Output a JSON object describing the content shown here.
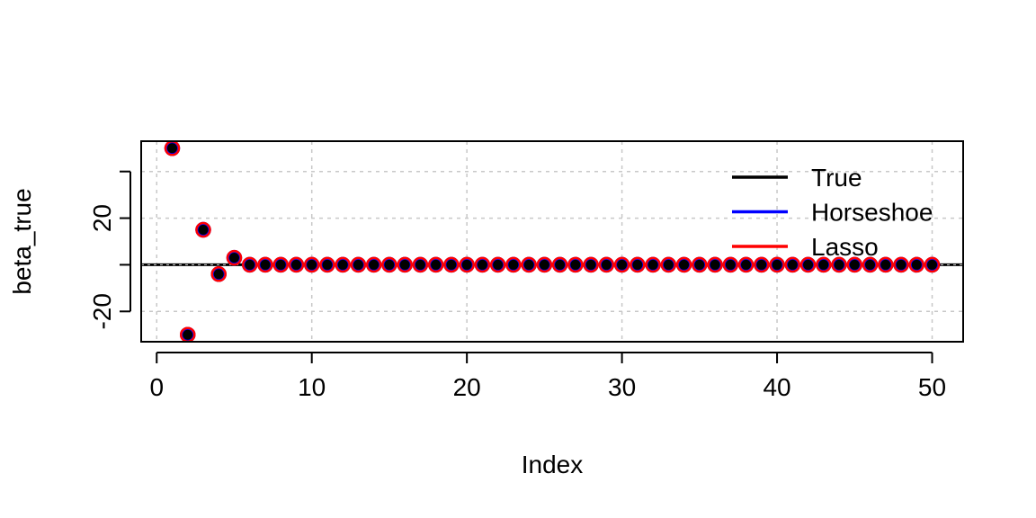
{
  "chart_data": {
    "type": "scatter",
    "xlabel": "Index",
    "ylabel": "beta_true",
    "xlim": [
      -1,
      52
    ],
    "ylim": [
      -33,
      53
    ],
    "x_ticks": [
      0,
      10,
      20,
      30,
      40,
      50
    ],
    "x_tick_labels": [
      "0",
      "10",
      "20",
      "30",
      "40",
      "50"
    ],
    "y_ticks": [
      -20,
      0,
      20,
      40
    ],
    "y_tick_labels": [
      "-20",
      "",
      "20",
      ""
    ],
    "grid": true,
    "reference_line_y": 0,
    "legend": {
      "position": "top-right",
      "entries": [
        {
          "label": "True",
          "color": "#000000"
        },
        {
          "label": "Horseshoe",
          "color": "#0000ff"
        },
        {
          "label": "Lasso",
          "color": "#ff0000"
        }
      ]
    },
    "series": [
      {
        "name": "True",
        "color": "#000000",
        "x": [
          1,
          2,
          3,
          4,
          5,
          6,
          7,
          8,
          9,
          10,
          11,
          12,
          13,
          14,
          15,
          16,
          17,
          18,
          19,
          20,
          21,
          22,
          23,
          24,
          25,
          26,
          27,
          28,
          29,
          30,
          31,
          32,
          33,
          34,
          35,
          36,
          37,
          38,
          39,
          40,
          41,
          42,
          43,
          44,
          45,
          46,
          47,
          48,
          49,
          50
        ],
        "y": [
          50,
          -30,
          15,
          -4,
          3,
          0,
          0,
          0,
          0,
          0,
          0,
          0,
          0,
          0,
          0,
          0,
          0,
          0,
          0,
          0,
          0,
          0,
          0,
          0,
          0,
          0,
          0,
          0,
          0,
          0,
          0,
          0,
          0,
          0,
          0,
          0,
          0,
          0,
          0,
          0,
          0,
          0,
          0,
          0,
          0,
          0,
          0,
          0,
          0,
          0
        ]
      },
      {
        "name": "Horseshoe",
        "color": "#0000ff",
        "x": [
          1,
          2,
          3,
          4,
          5,
          6,
          7,
          8,
          9,
          10,
          11,
          12,
          13,
          14,
          15,
          16,
          17,
          18,
          19,
          20,
          21,
          22,
          23,
          24,
          25,
          26,
          27,
          28,
          29,
          30,
          31,
          32,
          33,
          34,
          35,
          36,
          37,
          38,
          39,
          40,
          41,
          42,
          43,
          44,
          45,
          46,
          47,
          48,
          49,
          50
        ],
        "y": [
          50,
          -30,
          15,
          -4,
          3,
          0,
          0,
          0,
          0,
          0,
          0,
          0,
          0,
          0,
          0,
          0,
          0,
          0,
          0,
          0,
          0,
          0,
          0,
          0,
          0,
          0,
          0,
          0,
          0,
          0,
          0,
          0,
          0,
          0,
          0,
          0,
          0,
          0,
          0,
          0,
          0,
          0,
          0,
          0,
          0,
          0,
          0,
          0,
          0,
          0
        ]
      },
      {
        "name": "Lasso",
        "color": "#ff0000",
        "x": [
          1,
          2,
          3,
          4,
          5,
          6,
          7,
          8,
          9,
          10,
          11,
          12,
          13,
          14,
          15,
          16,
          17,
          18,
          19,
          20,
          21,
          22,
          23,
          24,
          25,
          26,
          27,
          28,
          29,
          30,
          31,
          32,
          33,
          34,
          35,
          36,
          37,
          38,
          39,
          40,
          41,
          42,
          43,
          44,
          45,
          46,
          47,
          48,
          49,
          50
        ],
        "y": [
          50,
          -30,
          15,
          -4,
          3,
          0,
          0,
          0,
          0,
          0,
          0,
          0,
          0,
          0,
          0,
          0,
          0,
          0,
          0,
          0,
          0,
          0,
          0,
          0,
          0,
          0,
          0,
          0,
          0,
          0,
          0,
          0,
          0,
          0,
          0,
          0,
          0,
          0,
          0,
          0,
          0,
          0,
          0,
          0,
          0,
          0,
          0,
          0,
          0,
          0
        ]
      }
    ]
  }
}
